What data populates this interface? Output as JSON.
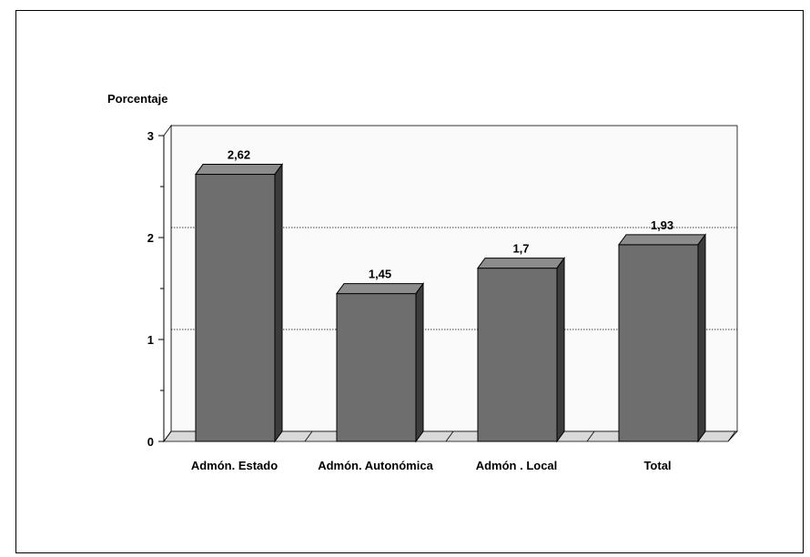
{
  "chart_data": {
    "type": "bar",
    "ylabel": "Porcentaje",
    "ylim": [
      0,
      3
    ],
    "yticks": [
      "0",
      "1",
      "2",
      "3"
    ],
    "categories": [
      "Admón. Estado",
      "Admón. Autonómica",
      "Admón . Local",
      "Total"
    ],
    "values": [
      2.62,
      1.45,
      1.7,
      1.93
    ],
    "value_labels": [
      "2,62",
      "1,45",
      "1,7",
      "1,93"
    ],
    "grid": true,
    "bar_color": "#6e6e6e",
    "bar_top_color": "#8c8c8c",
    "bar_side_color": "#3c3c3c"
  }
}
